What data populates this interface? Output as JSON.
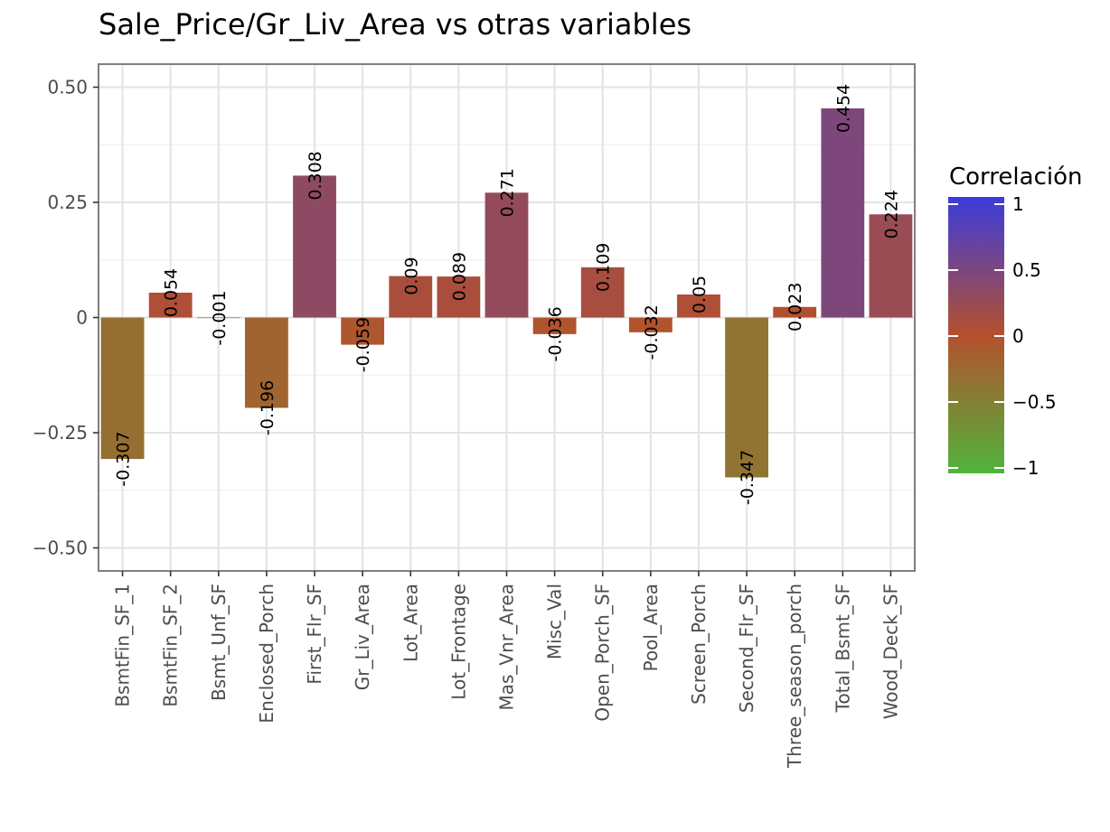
{
  "chart_data": {
    "type": "bar",
    "title": "Sale_Price/Gr_Liv_Area vs otras variables",
    "xlabel": "",
    "ylabel": "",
    "ylim": [
      -0.55,
      0.55
    ],
    "y_ticks": [
      0.5,
      0.25,
      0,
      -0.25,
      -0.5
    ],
    "y_tick_labels": [
      "0.50",
      "0.25",
      "0",
      "−0.25",
      "−0.50"
    ],
    "grid": true,
    "categories": [
      "BsmtFin_SF_1",
      "BsmtFin_SF_2",
      "Bsmt_Unf_SF",
      "Enclosed_Porch",
      "First_Flr_SF",
      "Gr_Liv_Area",
      "Lot_Area",
      "Lot_Frontage",
      "Mas_Vnr_Area",
      "Misc_Val",
      "Open_Porch_SF",
      "Pool_Area",
      "Screen_Porch",
      "Second_Flr_SF",
      "Three_season_porch",
      "Total_Bsmt_SF",
      "Wood_Deck_SF"
    ],
    "values": [
      -0.307,
      0.054,
      -0.001,
      -0.196,
      0.308,
      -0.059,
      0.09,
      0.089,
      0.271,
      -0.036,
      0.109,
      -0.032,
      0.05,
      -0.347,
      0.023,
      0.454,
      0.224
    ],
    "value_labels": [
      "-0.307",
      "0.054",
      "-0.001",
      "-0.196",
      "0.308",
      "-0.059",
      "0.09",
      "0.089",
      "0.271",
      "-0.036",
      "0.109",
      "-0.032",
      "0.05",
      "-0.347",
      "0.023",
      "0.454",
      "0.224"
    ],
    "legend": {
      "title": "Correlación",
      "position": "right",
      "ticks": [
        1,
        0.5,
        0,
        -0.5,
        -1
      ],
      "tick_labels": [
        "1",
        "0.5",
        "0",
        "−0.5",
        "−1"
      ],
      "colors": {
        "high": "#3c3cdc",
        "mid": "#b4502d",
        "low": "#50b43c"
      }
    }
  }
}
